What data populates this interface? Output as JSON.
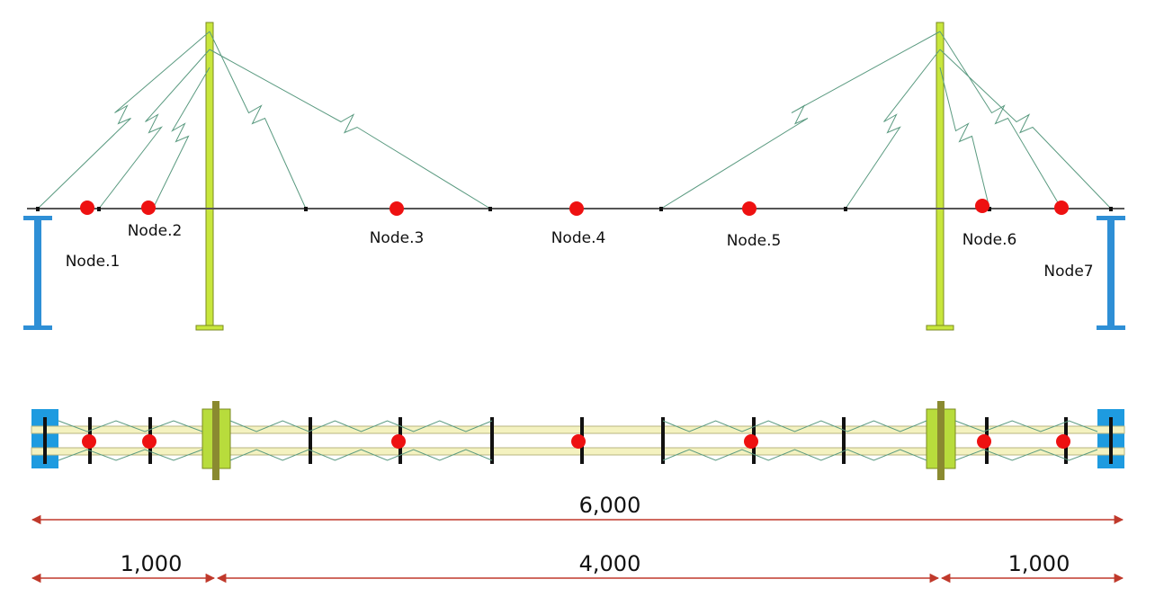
{
  "nodes": [
    {
      "label": "Node.1"
    },
    {
      "label": "Node.2"
    },
    {
      "label": "Node.3"
    },
    {
      "label": "Node.4"
    },
    {
      "label": "Node.5"
    },
    {
      "label": "Node.6"
    },
    {
      "label": "Node7"
    }
  ],
  "dimensions": {
    "total": "6,000",
    "spans": [
      "1,000",
      "4,000",
      "1,000"
    ]
  }
}
